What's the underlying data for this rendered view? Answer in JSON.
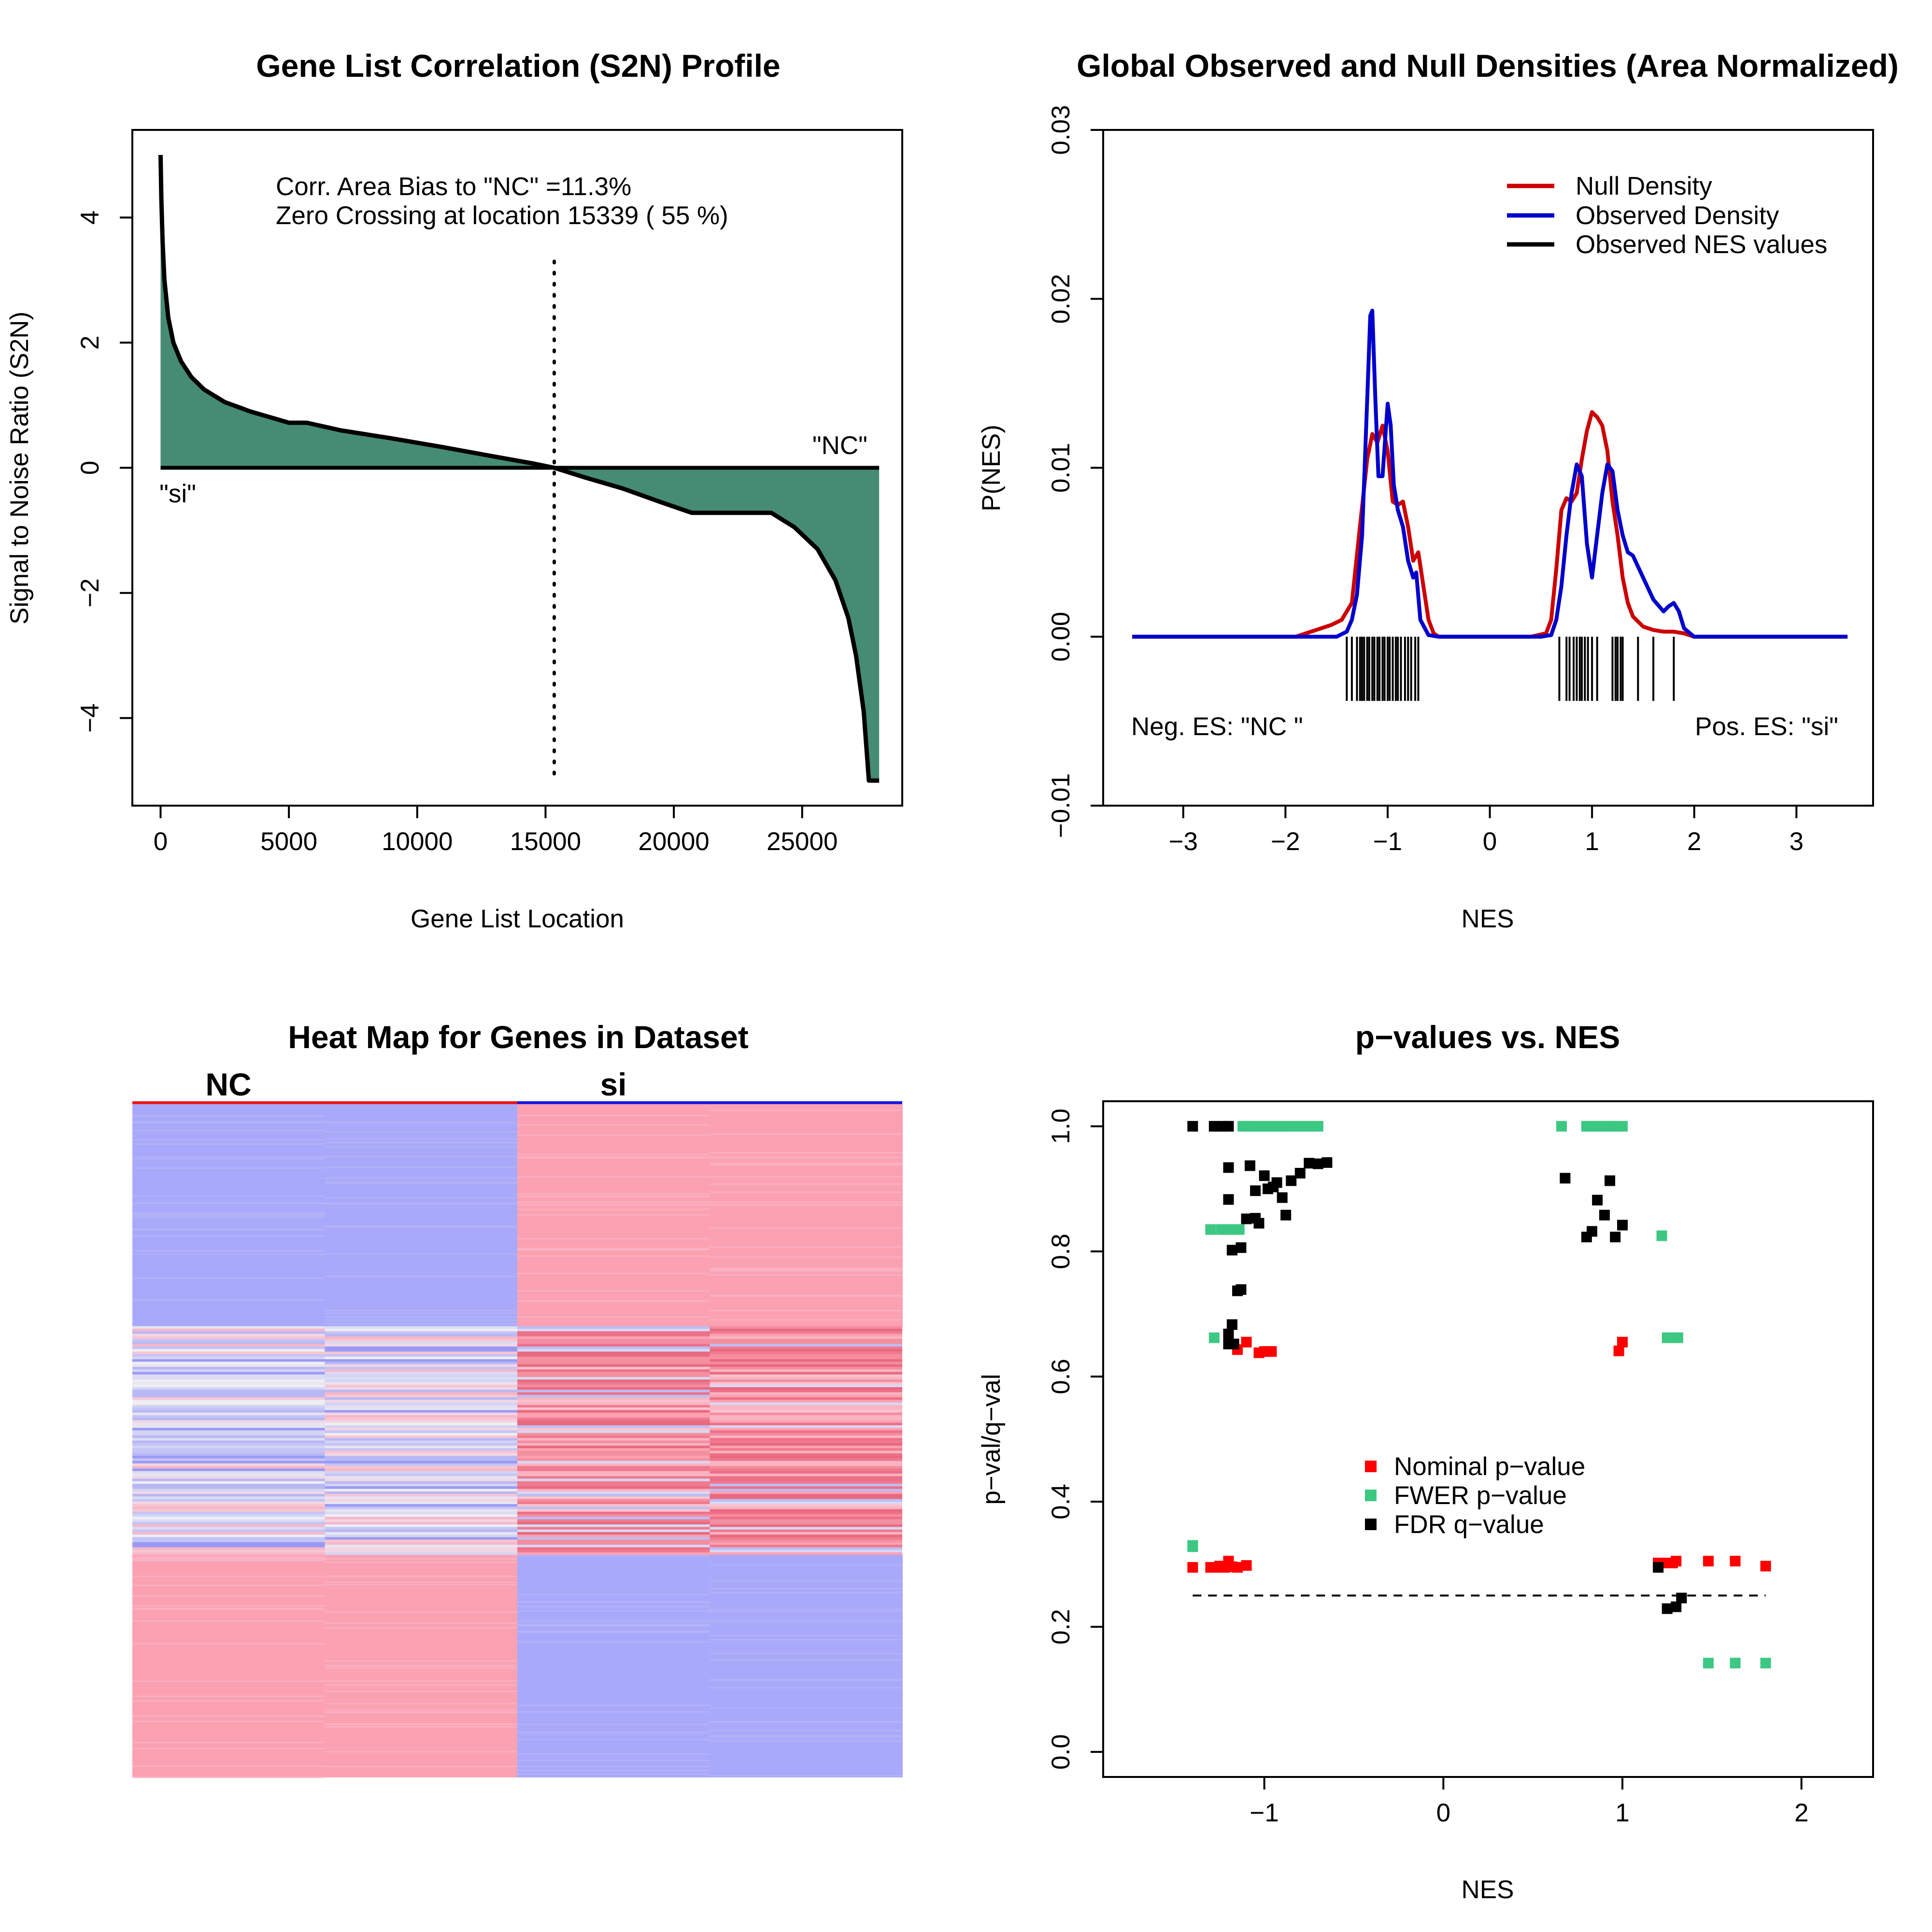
{
  "colors": {
    "fill_green": "#468B73",
    "null_red": "#CC0000",
    "obs_blue": "#0000CC",
    "nominal": "#FF0000",
    "fwer": "#3CC882",
    "fdr": "#000000",
    "heat_blue": "#A9A9FB",
    "heat_pink": "#FCA1B1"
  },
  "chart_data": [
    {
      "type": "area",
      "title": "Gene List Correlation (S2N) Profile",
      "xlabel": "Gene List Location",
      "ylabel": "Signal to Noise Ratio (S2N)",
      "xlim": [
        -1100,
        28900
      ],
      "ylim": [
        -5.4,
        5.4
      ],
      "xticks": [
        "0",
        "5000",
        "10000",
        "15000",
        "20000",
        "25000"
      ],
      "xtick_values": [
        0,
        5000,
        10000,
        15000,
        20000,
        25000
      ],
      "yticks": [
        "−4",
        "−2",
        "0",
        "2",
        "4"
      ],
      "ytick_values": [
        -4,
        -2,
        0,
        2,
        4
      ],
      "annotation_line1": "Corr. Area Bias to \"NC\" =11.3%",
      "annotation_line2": "Zero Crossing at location  15339  ( 55  %)",
      "label_left": "\"si\"",
      "label_right": "\"NC\"",
      "zero_crossing": 15339,
      "profile": {
        "x": [
          0,
          30,
          80,
          150,
          300,
          500,
          800,
          1200,
          1700,
          2500,
          3500,
          5000,
          5700,
          7000,
          9000,
          11000,
          13000,
          14500,
          15339,
          16500,
          18000,
          19500,
          20700,
          22000,
          23800,
          24700,
          25600,
          26300,
          26800,
          27100,
          27400,
          27600,
          27800,
          28000
        ],
        "y": [
          5.0,
          4.3,
          3.6,
          3.0,
          2.4,
          2.0,
          1.7,
          1.45,
          1.25,
          1.05,
          0.9,
          0.72,
          0.72,
          0.6,
          0.47,
          0.33,
          0.18,
          0.07,
          0.0,
          -0.15,
          -0.33,
          -0.55,
          -0.72,
          -0.72,
          -0.72,
          -0.95,
          -1.3,
          -1.8,
          -2.4,
          -3.0,
          -3.9,
          -5.0,
          -5.0,
          -5.0
        ]
      }
    },
    {
      "type": "line",
      "title": "Global Observed and Null Densities (Area Normalized)",
      "xlabel": "NES",
      "ylabel": "P(NES)",
      "xlim": [
        -3.5,
        3.75
      ],
      "ylim": [
        -0.01,
        0.03
      ],
      "xticks": [
        "−3",
        "−2",
        "−1",
        "0",
        "1",
        "2",
        "3"
      ],
      "xtick_values": [
        -3,
        -2,
        -1,
        0,
        1,
        2,
        3
      ],
      "yticks": [
        "−0.01",
        "0.00",
        "0.01",
        "0.02",
        "0.03"
      ],
      "ytick_values": [
        -0.01,
        0,
        0.01,
        0.02,
        0.03
      ],
      "legend": [
        "Null Density",
        "Observed Density",
        "Observed NES values"
      ],
      "legend_position": "top-right",
      "label_left": "Neg. ES: \"NC \"",
      "label_right": "Pos. ES: \"si\"",
      "null_density": {
        "x": [
          -3.5,
          -1.9,
          -1.7,
          -1.55,
          -1.45,
          -1.35,
          -1.28,
          -1.2,
          -1.15,
          -1.1,
          -1.05,
          -1.0,
          -0.95,
          -0.9,
          -0.85,
          -0.8,
          -0.75,
          -0.7,
          -0.65,
          -0.6,
          -0.55,
          -0.5,
          -0.4,
          0.4,
          0.55,
          0.6,
          0.65,
          0.7,
          0.75,
          0.8,
          0.85,
          0.9,
          0.95,
          1.0,
          1.05,
          1.1,
          1.15,
          1.2,
          1.25,
          1.3,
          1.35,
          1.4,
          1.5,
          1.6,
          1.7,
          1.8,
          1.9,
          2.0,
          3.5
        ],
        "y": [
          0,
          0,
          0.0004,
          0.0007,
          0.001,
          0.002,
          0.006,
          0.0105,
          0.012,
          0.0115,
          0.0125,
          0.011,
          0.008,
          0.0078,
          0.008,
          0.0065,
          0.0045,
          0.005,
          0.003,
          0.001,
          0.0002,
          0,
          0,
          0,
          0.0002,
          0.001,
          0.004,
          0.0075,
          0.0082,
          0.008,
          0.0085,
          0.0105,
          0.0122,
          0.0133,
          0.013,
          0.0125,
          0.011,
          0.008,
          0.006,
          0.0035,
          0.002,
          0.0012,
          0.0006,
          0.0004,
          0.0003,
          0.0003,
          0.0002,
          0,
          0
        ]
      },
      "observed_density": {
        "x": [
          -3.5,
          -1.5,
          -1.4,
          -1.35,
          -1.3,
          -1.25,
          -1.2,
          -1.17,
          -1.15,
          -1.12,
          -1.09,
          -1.05,
          -1.0,
          -0.97,
          -0.94,
          -0.9,
          -0.85,
          -0.8,
          -0.75,
          -0.72,
          -0.68,
          -0.6,
          -0.5,
          0.5,
          0.6,
          0.65,
          0.7,
          0.75,
          0.8,
          0.85,
          0.9,
          0.95,
          1.0,
          1.05,
          1.1,
          1.15,
          1.2,
          1.25,
          1.3,
          1.35,
          1.4,
          1.5,
          1.6,
          1.7,
          1.75,
          1.8,
          1.85,
          1.9,
          2.0,
          3.5
        ],
        "y": [
          0,
          0,
          0.0003,
          0.001,
          0.0025,
          0.006,
          0.014,
          0.019,
          0.0193,
          0.014,
          0.0095,
          0.0095,
          0.0138,
          0.0125,
          0.009,
          0.0075,
          0.0065,
          0.0045,
          0.0035,
          0.0038,
          0.001,
          0.0001,
          0,
          0,
          0.0001,
          0.001,
          0.003,
          0.006,
          0.0085,
          0.0102,
          0.0095,
          0.0055,
          0.0035,
          0.006,
          0.0085,
          0.0102,
          0.0098,
          0.0075,
          0.006,
          0.005,
          0.0048,
          0.0035,
          0.0022,
          0.0015,
          0.0018,
          0.002,
          0.0015,
          0.0005,
          0,
          0
        ]
      },
      "observed_nes": [
        -1.4,
        -1.35,
        -1.3,
        -1.27,
        -1.25,
        -1.23,
        -1.2,
        -1.18,
        -1.15,
        -1.13,
        -1.1,
        -1.08,
        -1.05,
        -1.03,
        -1.0,
        -0.98,
        -0.95,
        -0.92,
        -0.9,
        -0.87,
        -0.83,
        -0.8,
        -0.77,
        -0.73,
        -0.7,
        0.68,
        0.75,
        0.78,
        0.82,
        0.85,
        0.88,
        0.9,
        0.93,
        0.96,
        1.0,
        1.05,
        1.2,
        1.23,
        1.25,
        1.28,
        1.3,
        1.45,
        1.6,
        1.8
      ]
    },
    {
      "type": "heatmap",
      "title": "Heat Map for Genes in Dataset",
      "columns": [
        "NC",
        "si"
      ],
      "sub_columns": 4,
      "blocks": [
        {
          "rows": [
            0,
            0.33
          ],
          "columns": [
            "blue",
            "blue",
            "pink",
            "pink"
          ]
        },
        {
          "rows": [
            0.33,
            0.67
          ],
          "columns": [
            "mixed-neutral",
            "mixed-neutral",
            "mixed-red",
            "mixed-red"
          ]
        },
        {
          "rows": [
            0.67,
            1.0
          ],
          "columns": [
            "pink",
            "pink",
            "blue",
            "blue"
          ]
        }
      ]
    },
    {
      "type": "scatter",
      "title": "p−values vs. NES",
      "xlabel": "NES",
      "ylabel": "p−val/q−val",
      "xlim": [
        -1.9,
        2.4
      ],
      "ylim": [
        -0.04,
        1.04
      ],
      "xticks": [
        "−1",
        "0",
        "1",
        "2"
      ],
      "xtick_values": [
        -1,
        0,
        1,
        2
      ],
      "yticks": [
        "0.0",
        "0.2",
        "0.4",
        "0.6",
        "0.8",
        "1.0"
      ],
      "ytick_values": [
        0,
        0.2,
        0.4,
        0.6,
        0.8,
        1.0
      ],
      "reference_line": 0.25,
      "reference_range": [
        -1.4,
        1.8
      ],
      "legend": [
        "Nominal p−value",
        "FWER p−value",
        "FDR q−value"
      ],
      "legend_position": "center",
      "series": [
        {
          "name": "Nominal p−value",
          "x": [
            -1.4,
            -1.3,
            -1.27,
            -1.25,
            -1.22,
            -1.2,
            -1.18,
            -1.15,
            -1.1,
            -1.2,
            -1.15,
            -1.1,
            -1.03,
            -1.0,
            -0.98,
            -0.96,
            0.98,
            1.0,
            1.2,
            1.22,
            1.25,
            1.28,
            1.3,
            1.48,
            1.63,
            1.8
          ],
          "y": [
            0.295,
            0.295,
            0.295,
            0.297,
            0.295,
            0.305,
            0.296,
            0.295,
            0.298,
            0.654,
            0.643,
            0.655,
            0.638,
            0.64,
            0.64,
            0.64,
            0.641,
            0.655,
            0.302,
            0.302,
            0.302,
            0.302,
            0.305,
            0.305,
            0.305,
            0.297
          ]
        },
        {
          "name": "FWER p−value",
          "x": [
            -1.4,
            -1.28,
            -1.22,
            -1.18,
            -1.14,
            -1.1,
            -1.06,
            -1.02,
            -0.98,
            -0.94,
            -0.9,
            -0.86,
            -0.82,
            -0.78,
            -0.74,
            -0.7,
            -1.3,
            -1.24,
            -1.2,
            -1.16,
            -1.12,
            -1.4,
            0.66,
            0.8,
            0.83,
            0.86,
            0.9,
            0.93,
            0.96,
            1.0,
            1.22,
            1.25,
            1.28,
            1.31,
            1.48,
            1.63,
            1.8
          ],
          "y": [
            0.328,
            0.662,
            0.835,
            0.835,
            0.835,
            1.0,
            1.0,
            1.0,
            1.0,
            1.0,
            1.0,
            1.0,
            1.0,
            1.0,
            1.0,
            1.0,
            0.835,
            0.835,
            0.835,
            0.835,
            1.0,
            0.33,
            1.0,
            1.0,
            1.0,
            1.0,
            1.0,
            1.0,
            1.0,
            1.0,
            0.825,
            0.662,
            0.662,
            0.662,
            0.142,
            0.142,
            0.142
          ]
        },
        {
          "name": "FDR q−value",
          "x": [
            -1.4,
            -1.28,
            -1.23,
            -1.2,
            -1.2,
            -1.2,
            -1.18,
            -1.15,
            -1.13,
            -1.18,
            -1.13,
            -1.1,
            -1.08,
            -1.05,
            -1.05,
            -1.03,
            -1.0,
            -0.98,
            -0.95,
            -0.93,
            -0.9,
            -0.88,
            -0.85,
            -0.8,
            -0.75,
            -0.7,
            -0.65,
            -1.2,
            -1.2,
            -1.17,
            0.68,
            0.8,
            0.83,
            0.86,
            0.9,
            0.93,
            0.96,
            1.0,
            1.2,
            1.25,
            1.3,
            1.33
          ],
          "y": [
            1.0,
            1.0,
            1.0,
            1.0,
            0.934,
            0.883,
            0.802,
            0.737,
            0.739,
            0.683,
            0.806,
            0.852,
            0.937,
            0.853,
            0.897,
            0.845,
            0.921,
            0.9,
            0.903,
            0.91,
            0.886,
            0.858,
            0.913,
            0.925,
            0.941,
            0.94,
            0.942,
            0.652,
            0.668,
            0.652,
            0.917,
            0.823,
            0.832,
            0.882,
            0.858,
            0.913,
            0.823,
            0.842,
            0.295,
            0.229,
            0.232,
            0.246
          ]
        }
      ]
    }
  ]
}
